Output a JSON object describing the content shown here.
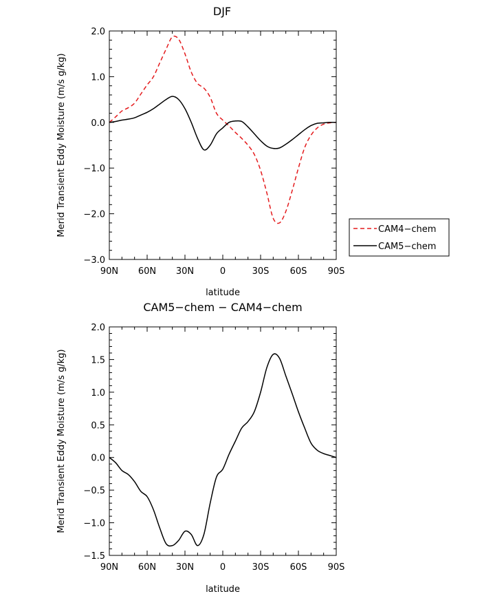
{
  "chart_data": [
    {
      "type": "line",
      "title": "DJF",
      "xlabel": "latitude",
      "ylabel": "Merid Transient Eddy Moisture (m/s g/kg)",
      "xlim": [
        -90,
        90
      ],
      "ylim": [
        -3.0,
        2.0
      ],
      "x_ticks": [
        -90,
        -60,
        -30,
        0,
        30,
        60,
        90
      ],
      "x_tick_labels": [
        "90N",
        "60N",
        "30N",
        "0",
        "30S",
        "60S",
        "90S"
      ],
      "y_ticks": [
        -3.0,
        -2.0,
        -1.0,
        0.0,
        1.0,
        2.0
      ],
      "y_tick_labels": [
        "−3.0",
        "−2.0",
        "−1.0",
        "0.0",
        "1.0",
        "2.0"
      ],
      "legend_position": "right",
      "series": [
        {
          "name": "CAM4−chem",
          "color": "#e41a1c",
          "dash": "dashed",
          "x": [
            -90,
            -85,
            -80,
            -75,
            -70,
            -65,
            -60,
            -55,
            -50,
            -45,
            -40,
            -35,
            -30,
            -25,
            -20,
            -15,
            -10,
            -5,
            0,
            5,
            10,
            15,
            20,
            25,
            30,
            35,
            40,
            45,
            50,
            55,
            60,
            65,
            70,
            75,
            80,
            85,
            90
          ],
          "y": [
            0.0,
            0.12,
            0.25,
            0.32,
            0.42,
            0.62,
            0.82,
            1.0,
            1.3,
            1.6,
            1.87,
            1.82,
            1.5,
            1.1,
            0.85,
            0.75,
            0.55,
            0.2,
            0.05,
            -0.08,
            -0.22,
            -0.35,
            -0.5,
            -0.7,
            -1.05,
            -1.55,
            -2.1,
            -2.2,
            -1.95,
            -1.5,
            -1.0,
            -0.55,
            -0.28,
            -0.12,
            -0.04,
            -0.01,
            0.0
          ]
        },
        {
          "name": "CAM5−chem",
          "color": "#000000",
          "dash": "solid",
          "x": [
            -90,
            -85,
            -80,
            -75,
            -70,
            -65,
            -60,
            -55,
            -50,
            -45,
            -40,
            -35,
            -30,
            -25,
            -20,
            -15,
            -10,
            -5,
            0,
            5,
            10,
            15,
            20,
            25,
            30,
            35,
            40,
            45,
            50,
            55,
            60,
            65,
            70,
            75,
            80,
            85,
            90
          ],
          "y": [
            0.0,
            0.02,
            0.05,
            0.07,
            0.1,
            0.16,
            0.22,
            0.3,
            0.4,
            0.5,
            0.57,
            0.5,
            0.3,
            0.0,
            -0.35,
            -0.6,
            -0.5,
            -0.25,
            -0.12,
            0.0,
            0.03,
            0.02,
            -0.1,
            -0.25,
            -0.4,
            -0.52,
            -0.57,
            -0.56,
            -0.48,
            -0.38,
            -0.27,
            -0.16,
            -0.07,
            -0.02,
            -0.01,
            0.0,
            0.0
          ]
        }
      ]
    },
    {
      "type": "line",
      "title": "CAM5−chem − CAM4−chem",
      "xlabel": "latitude",
      "ylabel": "Merid Transient Eddy Moisture (m/s g/kg)",
      "xlim": [
        -90,
        90
      ],
      "ylim": [
        -1.5,
        2.0
      ],
      "x_ticks": [
        -90,
        -60,
        -30,
        0,
        30,
        60,
        90
      ],
      "x_tick_labels": [
        "90N",
        "60N",
        "30N",
        "0",
        "30S",
        "60S",
        "90S"
      ],
      "y_ticks": [
        -1.5,
        -1.0,
        -0.5,
        0.0,
        0.5,
        1.0,
        1.5,
        2.0
      ],
      "y_tick_labels": [
        "−1.5",
        "−1.0",
        "−0.5",
        "0.0",
        "0.5",
        "1.0",
        "1.5",
        "2.0"
      ],
      "series": [
        {
          "name": "CAM5−chem − CAM4−chem",
          "color": "#000000",
          "dash": "solid",
          "x": [
            -90,
            -85,
            -80,
            -75,
            -70,
            -65,
            -60,
            -55,
            -50,
            -45,
            -40,
            -35,
            -30,
            -25,
            -20,
            -15,
            -10,
            -5,
            0,
            5,
            10,
            15,
            20,
            25,
            30,
            35,
            40,
            45,
            50,
            55,
            60,
            65,
            70,
            75,
            80,
            85,
            90
          ],
          "y": [
            0.0,
            -0.08,
            -0.2,
            -0.26,
            -0.37,
            -0.52,
            -0.6,
            -0.8,
            -1.08,
            -1.32,
            -1.35,
            -1.27,
            -1.13,
            -1.18,
            -1.35,
            -1.18,
            -0.7,
            -0.3,
            -0.18,
            0.05,
            0.25,
            0.45,
            0.55,
            0.7,
            1.0,
            1.38,
            1.58,
            1.52,
            1.25,
            0.98,
            0.7,
            0.45,
            0.22,
            0.11,
            0.06,
            0.03,
            0.0
          ]
        }
      ]
    }
  ]
}
